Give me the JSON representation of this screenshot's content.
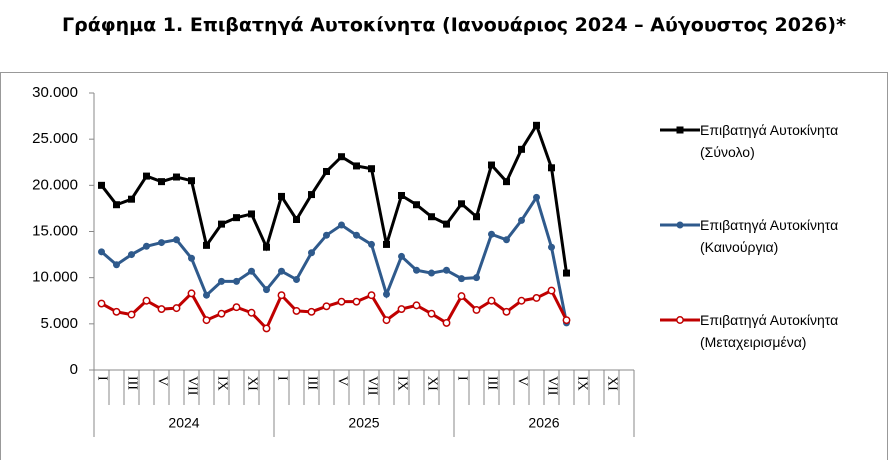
{
  "chart_data": {
    "type": "line",
    "title": "Γράφημα 1. Επιβατηγά Αυτοκίνητα (Ιανουάριος 2024 – Αύγουστος 2026)*",
    "categories": [
      "I",
      null,
      "III",
      null,
      "V",
      null,
      "VII",
      null,
      "IX",
      null,
      "XI",
      null,
      "I",
      null,
      "III",
      null,
      "V",
      null,
      "VII",
      null,
      "IX",
      null,
      "XI",
      null,
      "I",
      null,
      "III",
      null,
      "V",
      null,
      "VII",
      null,
      "IX",
      null,
      "XI",
      null
    ],
    "year_groups": [
      "2024",
      "2025",
      "2026"
    ],
    "ylim": [
      0,
      30000
    ],
    "yticks": [
      0,
      {
        "value": 5000,
        "label": "5.000"
      },
      {
        "value": 10000,
        "label": "10.000"
      },
      {
        "value": 15000,
        "label": "15.000"
      },
      {
        "value": 20000,
        "label": "20.000"
      },
      {
        "value": 25000,
        "label": "25.000"
      },
      {
        "value": 30000,
        "label": "30.000"
      }
    ],
    "series": [
      {
        "name": "Επιβατηγά Αυτοκίνητα (Σύνολο)",
        "color": "#000000",
        "marker": "square",
        "values": [
          20000,
          17900,
          18500,
          21000,
          20400,
          20900,
          20500,
          13500,
          15800,
          16500,
          16900,
          13300,
          18800,
          16300,
          19000,
          21500,
          23100,
          22100,
          21800,
          13600,
          18900,
          17900,
          16600,
          15800,
          18000,
          16600,
          22200,
          20400,
          23900,
          26500,
          21900,
          10500,
          null,
          null,
          null,
          null
        ]
      },
      {
        "name": "Επιβατηγά Αυτοκίνητα (Καινούργια)",
        "color": "#2f5a8c",
        "marker": "circle",
        "values": [
          12800,
          11400,
          12500,
          13400,
          13800,
          14100,
          12100,
          8100,
          9600,
          9600,
          10700,
          8700,
          10700,
          9800,
          12700,
          14600,
          15700,
          14600,
          13600,
          8200,
          12300,
          10800,
          10500,
          10800,
          9900,
          10000,
          14700,
          14100,
          16200,
          18700,
          13300,
          5100,
          null,
          null,
          null,
          null
        ]
      },
      {
        "name": "Επιβατηγά Αυτοκίνητα (Μεταχειρισμένα)",
        "color": "#c00000",
        "marker": "open-circle",
        "values": [
          7200,
          6300,
          6000,
          7500,
          6600,
          6700,
          8300,
          5400,
          6100,
          6800,
          6200,
          4500,
          8100,
          6400,
          6300,
          6900,
          7400,
          7400,
          8100,
          5400,
          6600,
          7000,
          6100,
          5100,
          8000,
          6500,
          7500,
          6300,
          7500,
          7800,
          8600,
          5400,
          null,
          null,
          null,
          null
        ]
      }
    ]
  }
}
